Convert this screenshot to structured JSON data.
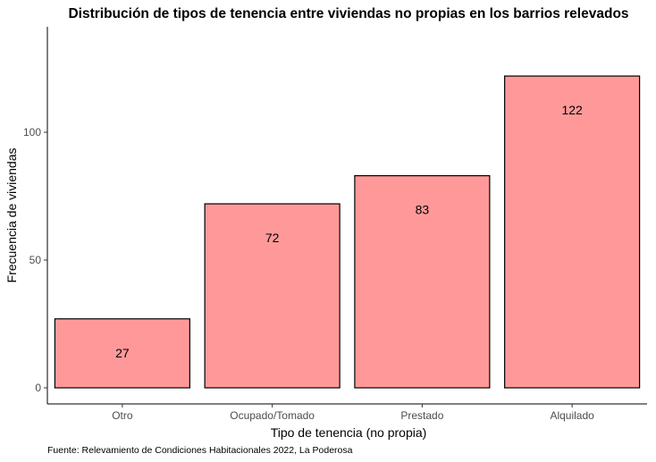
{
  "chart_data": {
    "type": "bar",
    "title": "Distribución de tipos de tenencia entre viviendas no propias en los barrios relevados",
    "xlabel": "Tipo de tenencia (no propia)",
    "ylabel": "Frecuencia de viviendas",
    "categories": [
      "Otro",
      "Ocupado/Tomado",
      "Prestado",
      "Alquilado"
    ],
    "values": [
      27,
      72,
      83,
      122
    ],
    "data_labels": [
      "27",
      "72",
      "83",
      "122"
    ],
    "yticks": [
      0,
      50,
      100
    ],
    "ylim": [
      0,
      140
    ],
    "grid": false,
    "legend": "none",
    "bar_fill": "#ff9999",
    "bar_stroke": "#000000",
    "caption": "Fuente: Relevamiento de Condiciones Habitacionales 2022, La Poderosa"
  }
}
